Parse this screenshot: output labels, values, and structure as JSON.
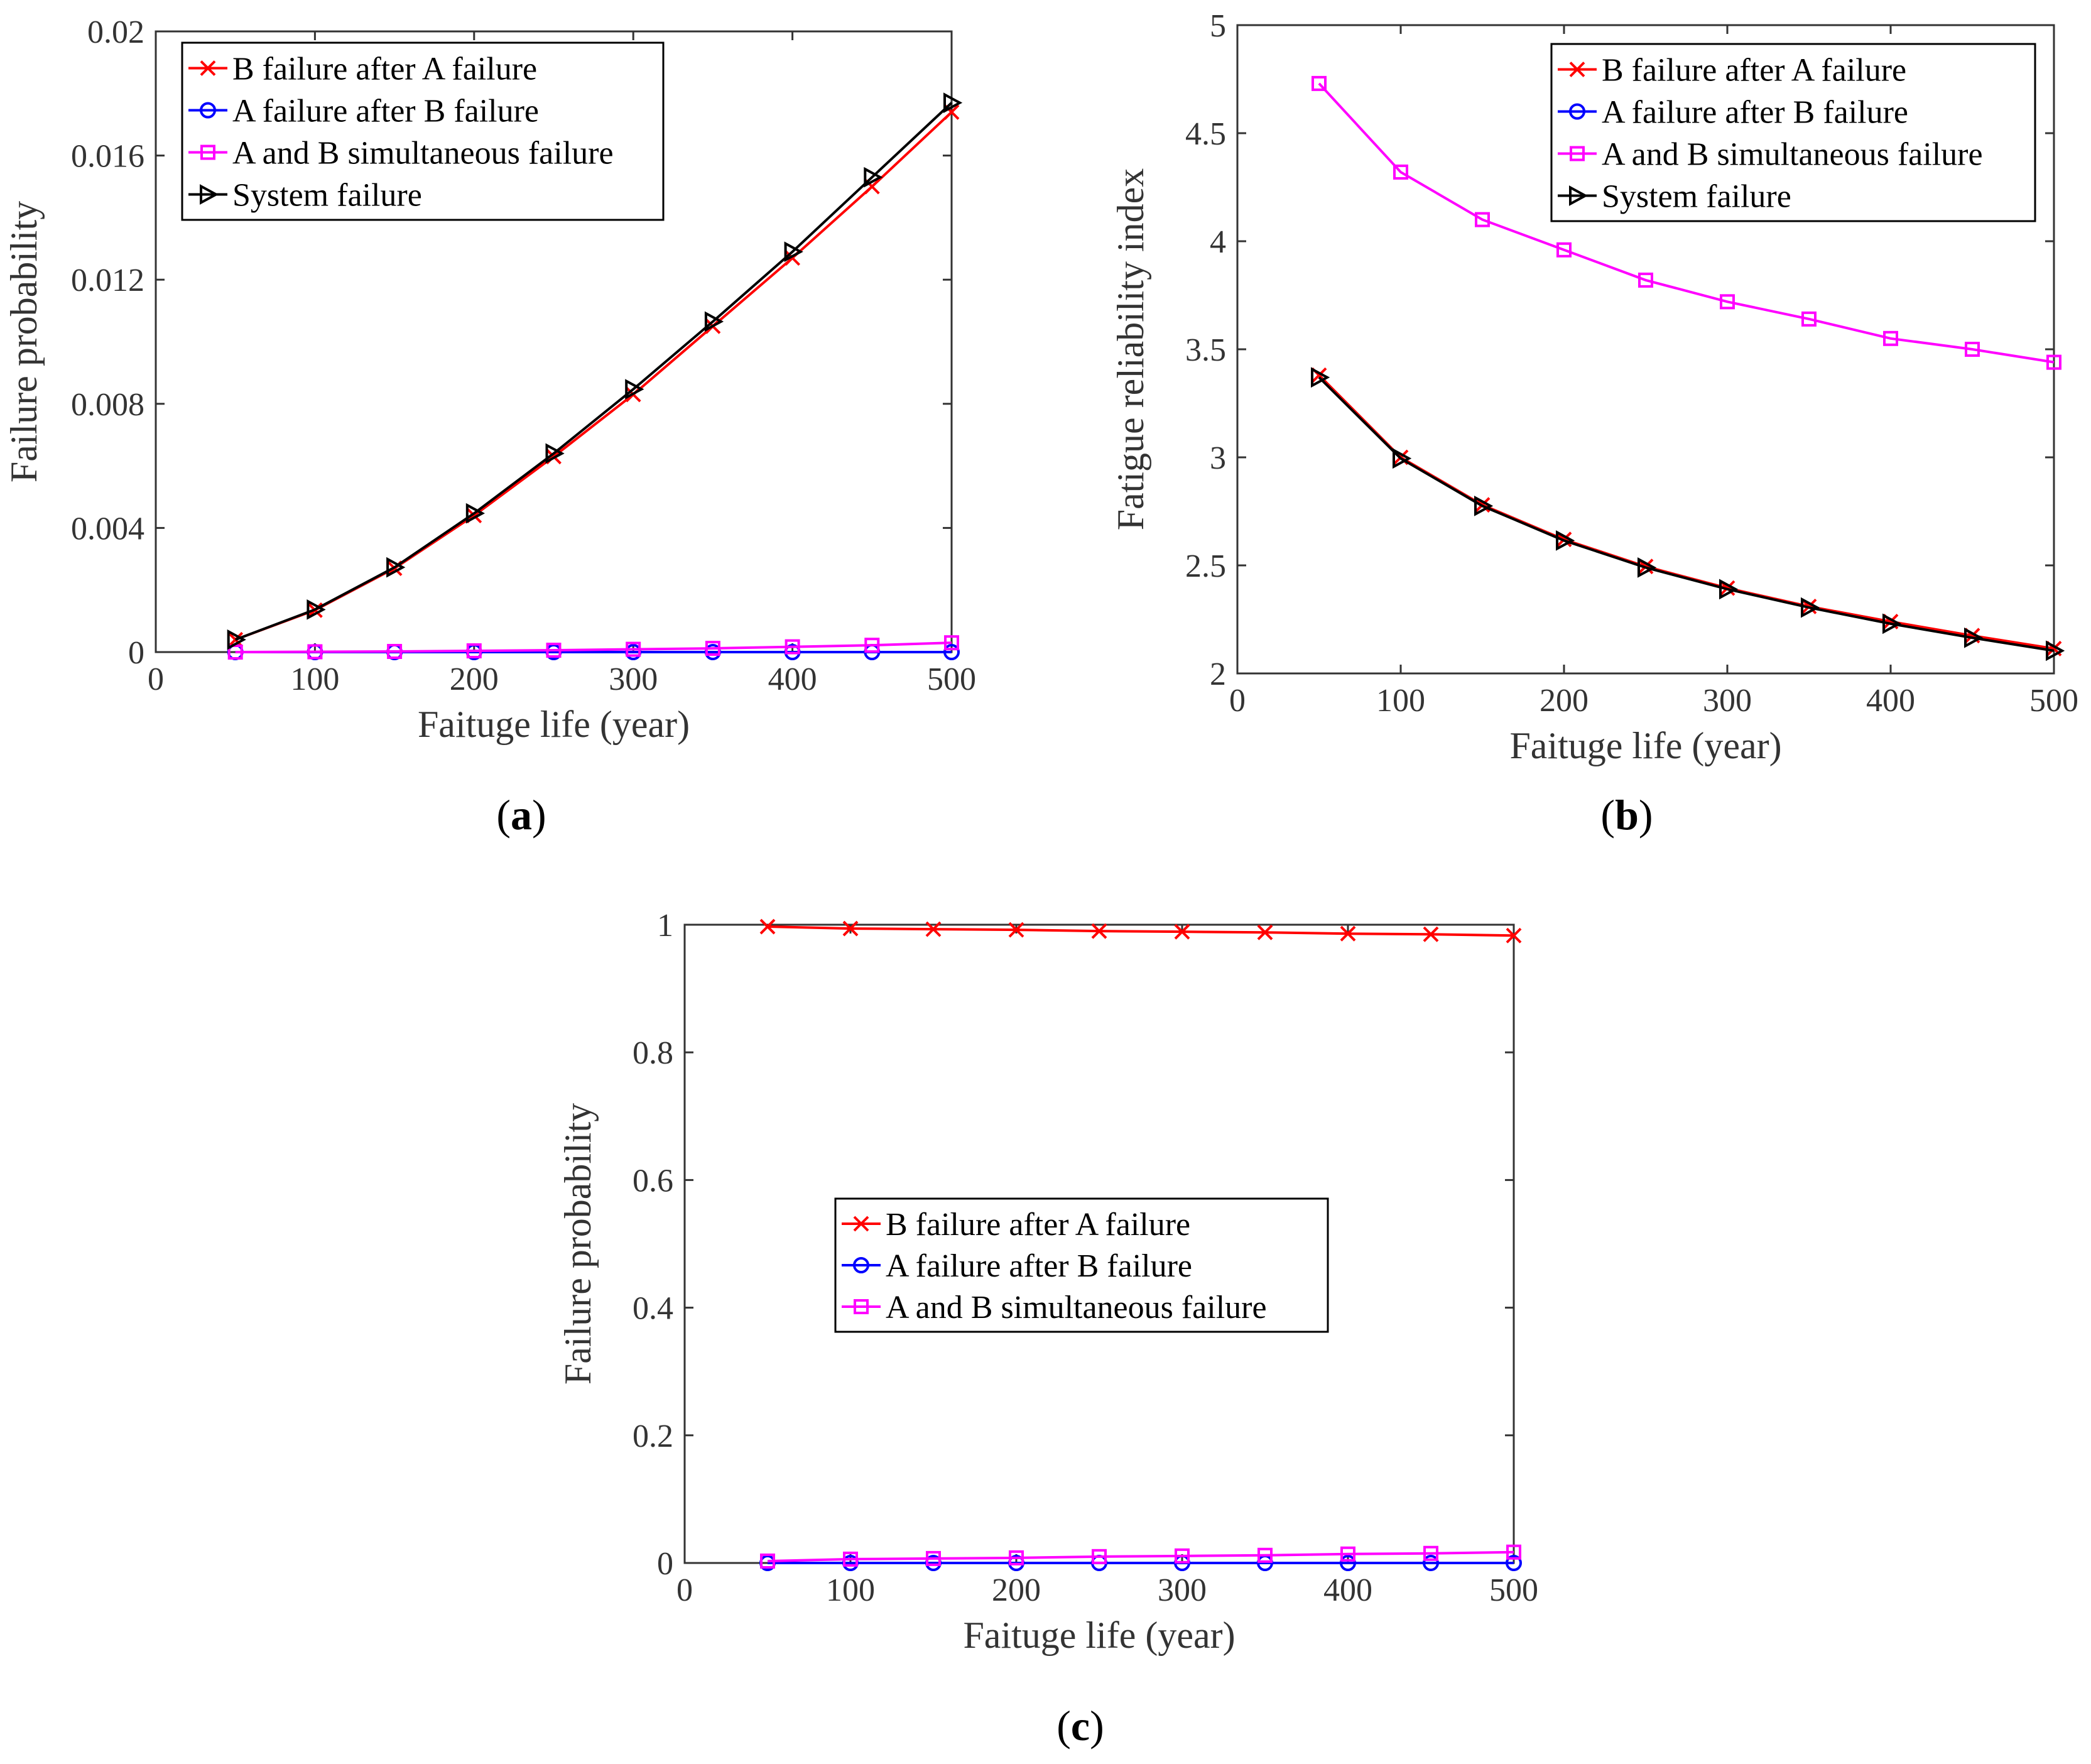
{
  "chart_data": [
    {
      "type": "line",
      "panel": "a",
      "xlabel": "Faituge life (year)",
      "ylabel": "Failure probability",
      "xlim": [
        0,
        500
      ],
      "ylim": [
        0,
        0.02
      ],
      "xticks": [
        0,
        100,
        200,
        300,
        400,
        500
      ],
      "xtick_labels": [
        "0",
        "100",
        "200",
        "300",
        "400",
        "500"
      ],
      "yticks": [
        0,
        0.004,
        0.008,
        0.012,
        0.016,
        0.02
      ],
      "ytick_labels": [
        "0",
        "0.004",
        "0.008",
        "0.012",
        "0.016",
        "0.02"
      ],
      "x": [
        50,
        100,
        150,
        200,
        250,
        300,
        350,
        400,
        450,
        500
      ],
      "legend_position": "top-left",
      "series": [
        {
          "name": "B failure after A failure",
          "color": "#ff0000",
          "marker": "x",
          "values": [
            0.0004,
            0.00135,
            0.0027,
            0.0044,
            0.0063,
            0.0083,
            0.0105,
            0.0127,
            0.015,
            0.0174
          ]
        },
        {
          "name": "A failure after B failure",
          "color": "#0000ff",
          "marker": "o",
          "values": [
            0,
            0,
            0,
            0,
            0,
            0,
            0,
            0,
            0,
            0
          ]
        },
        {
          "name": "A and B simultaneous failure",
          "color": "#ff00ff",
          "marker": "s",
          "values": [
            0,
            1e-05,
            2e-05,
            4e-05,
            6e-05,
            9e-05,
            0.00012,
            0.00017,
            0.00022,
            0.0003
          ]
        },
        {
          "name": "System failure",
          "color": "#000000",
          "marker": ">",
          "values": [
            0.0004,
            0.00137,
            0.00273,
            0.00447,
            0.0064,
            0.00847,
            0.01065,
            0.0129,
            0.0153,
            0.0177
          ]
        }
      ]
    },
    {
      "type": "line",
      "panel": "b",
      "xlabel": "Faituge life (year)",
      "ylabel": "Fatigue reliability index",
      "xlim": [
        0,
        500
      ],
      "ylim": [
        2,
        5
      ],
      "xticks": [
        0,
        100,
        200,
        300,
        400,
        500
      ],
      "xtick_labels": [
        "0",
        "100",
        "200",
        "300",
        "400",
        "500"
      ],
      "yticks": [
        2,
        2.5,
        3,
        3.5,
        4,
        4.5,
        5
      ],
      "ytick_labels": [
        "2",
        "2.5",
        "3",
        "3.5",
        "4",
        "4.5",
        "5"
      ],
      "x": [
        50,
        100,
        150,
        200,
        250,
        300,
        350,
        400,
        450,
        500
      ],
      "legend_position": "top-right",
      "series": [
        {
          "name": "B failure after A failure",
          "color": "#ff0000",
          "marker": "x",
          "values": [
            3.38,
            3.0,
            2.78,
            2.62,
            2.495,
            2.395,
            2.31,
            2.24,
            2.175,
            2.115
          ]
        },
        {
          "name": "A failure after B failure",
          "color": "#0000ff",
          "marker": "o",
          "values": [
            null,
            null,
            null,
            null,
            null,
            null,
            null,
            null,
            null,
            null
          ]
        },
        {
          "name": "A and B simultaneous failure",
          "color": "#ff00ff",
          "marker": "s",
          "values": [
            4.73,
            4.32,
            4.1,
            3.96,
            3.82,
            3.72,
            3.64,
            3.55,
            3.5,
            3.44
          ]
        },
        {
          "name": "System failure",
          "color": "#000000",
          "marker": ">",
          "values": [
            3.37,
            2.995,
            2.775,
            2.615,
            2.49,
            2.39,
            2.305,
            2.23,
            2.165,
            2.105
          ]
        }
      ]
    },
    {
      "type": "line",
      "panel": "c",
      "xlabel": "Faituge life (year)",
      "ylabel": "Failure probability",
      "xlim": [
        0,
        500
      ],
      "ylim": [
        0,
        1
      ],
      "xticks": [
        0,
        100,
        200,
        300,
        400,
        500
      ],
      "xtick_labels": [
        "0",
        "100",
        "200",
        "300",
        "400",
        "500"
      ],
      "yticks": [
        0,
        0.2,
        0.4,
        0.6,
        0.8,
        1
      ],
      "ytick_labels": [
        "0",
        "0.2",
        "0.4",
        "0.6",
        "0.8",
        "1"
      ],
      "x": [
        50,
        100,
        150,
        200,
        250,
        300,
        350,
        400,
        450,
        500
      ],
      "legend_position": "center",
      "series": [
        {
          "name": "B failure after A failure",
          "color": "#ff0000",
          "marker": "x",
          "values": [
            0.997,
            0.994,
            0.993,
            0.992,
            0.99,
            0.989,
            0.988,
            0.986,
            0.985,
            0.983
          ]
        },
        {
          "name": "A failure after B failure",
          "color": "#0000ff",
          "marker": "o",
          "values": [
            0,
            0,
            0,
            0,
            0,
            0,
            0,
            0,
            0,
            0
          ]
        },
        {
          "name": "A and B simultaneous failure",
          "color": "#ff00ff",
          "marker": "s",
          "values": [
            0.003,
            0.006,
            0.007,
            0.008,
            0.01,
            0.011,
            0.012,
            0.014,
            0.015,
            0.017
          ]
        }
      ]
    }
  ],
  "panel_labels": {
    "a": {
      "open": "(",
      "letter": "a",
      "close": ")"
    },
    "b": {
      "open": "(",
      "letter": "b",
      "close": ")"
    },
    "c": {
      "open": "(",
      "letter": "c",
      "close": ")"
    }
  }
}
